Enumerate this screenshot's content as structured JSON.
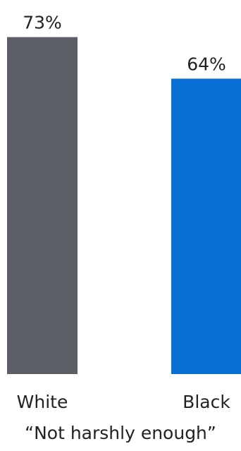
{
  "chart_data": {
    "type": "bar",
    "categories": [
      "White",
      "Black"
    ],
    "values": [
      73,
      64
    ],
    "value_labels": [
      "73%",
      "64%"
    ],
    "colors": [
      "#5c5e66",
      "#0a6fd4"
    ],
    "caption": "“Not harshly enough”",
    "ylim": [
      0,
      100
    ],
    "grid": false,
    "legend": "none"
  }
}
